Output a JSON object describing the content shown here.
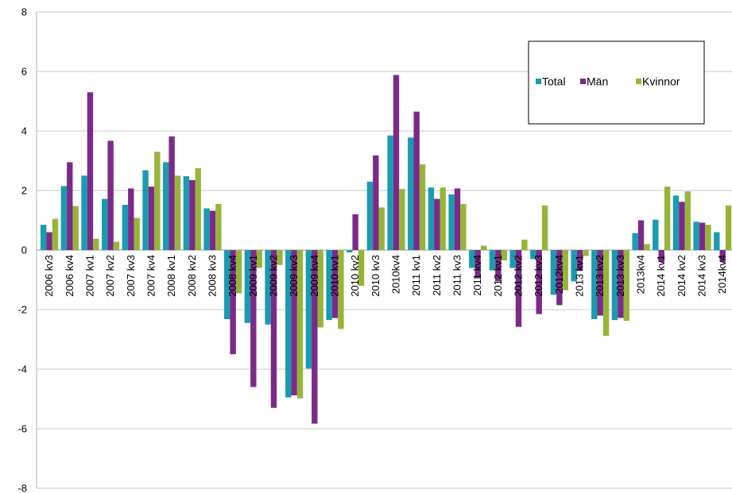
{
  "chart_data": {
    "type": "bar",
    "title": "",
    "xlabel": "",
    "ylabel": "",
    "ylim": [
      -8,
      8
    ],
    "yticks": [
      8,
      6,
      4,
      2,
      0,
      -2,
      -4,
      -6,
      -8
    ],
    "grid": "horizontal",
    "legend": "top-right",
    "categories": [
      "2006 kv3",
      "2006 kv4",
      "2007 kv1",
      "2007 kv2",
      "2007 kv3",
      "2007 kv4",
      "2008 kv1",
      "2008 kv2",
      "2008 kv3",
      "2008 kv4",
      "2009 kv1",
      "2009 kv2",
      "2009 kv3",
      "2009 kv4",
      "2010 kv1",
      "2010 kv2",
      "2010 kv3",
      "2010kv4",
      "2011 kv1",
      "2011 kv2",
      "2011 kv3",
      "2011 kv4",
      "2012 kv1",
      "2012 kv2",
      "2012 kv3",
      "2012kv4",
      "2013 kv1",
      "2013 kv2",
      "2013 kv3",
      "2013kv4",
      "2014 kv1",
      "2014 kv2",
      "2014 kv3",
      "2014kv4"
    ],
    "series": [
      {
        "name": "Total",
        "color": "#1a9bb0",
        "values": [
          0.85,
          2.15,
          2.5,
          1.72,
          1.52,
          2.68,
          2.95,
          2.48,
          1.4,
          -2.32,
          -2.45,
          -2.5,
          -4.95,
          -3.98,
          -2.35,
          -0.08,
          2.3,
          3.85,
          3.78,
          2.1,
          1.87,
          -0.6,
          -0.68,
          -0.6,
          -0.3,
          -1.5,
          -1.05,
          -2.32,
          -2.35,
          0.57,
          1.02,
          1.83,
          0.95,
          0.6
        ]
      },
      {
        "name": "Män",
        "color": "#7b2a8a",
        "values": [
          0.6,
          2.95,
          5.3,
          3.67,
          2.07,
          2.13,
          3.82,
          2.35,
          1.32,
          -3.5,
          -4.6,
          -5.3,
          -4.88,
          -5.83,
          -2.28,
          1.2,
          3.18,
          5.88,
          4.65,
          1.72,
          2.07,
          -0.95,
          -1.05,
          -2.58,
          -2.15,
          -1.85,
          -0.7,
          -2.2,
          -2.28,
          1.0,
          -0.4,
          1.62,
          0.92,
          -0.4
        ]
      },
      {
        "name": "Kvinnor",
        "color": "#97b43a",
        "values": [
          1.05,
          1.48,
          0.38,
          0.28,
          1.08,
          3.3,
          2.5,
          2.75,
          1.55,
          -1.45,
          -0.6,
          -0.5,
          -4.98,
          -2.6,
          -2.65,
          -1.2,
          1.43,
          2.05,
          2.88,
          2.1,
          1.55,
          0.15,
          -0.35,
          0.35,
          1.5,
          -1.35,
          -0.2,
          -2.88,
          -2.38,
          0.2,
          2.13,
          1.97,
          0.85,
          1.5
        ]
      }
    ]
  }
}
